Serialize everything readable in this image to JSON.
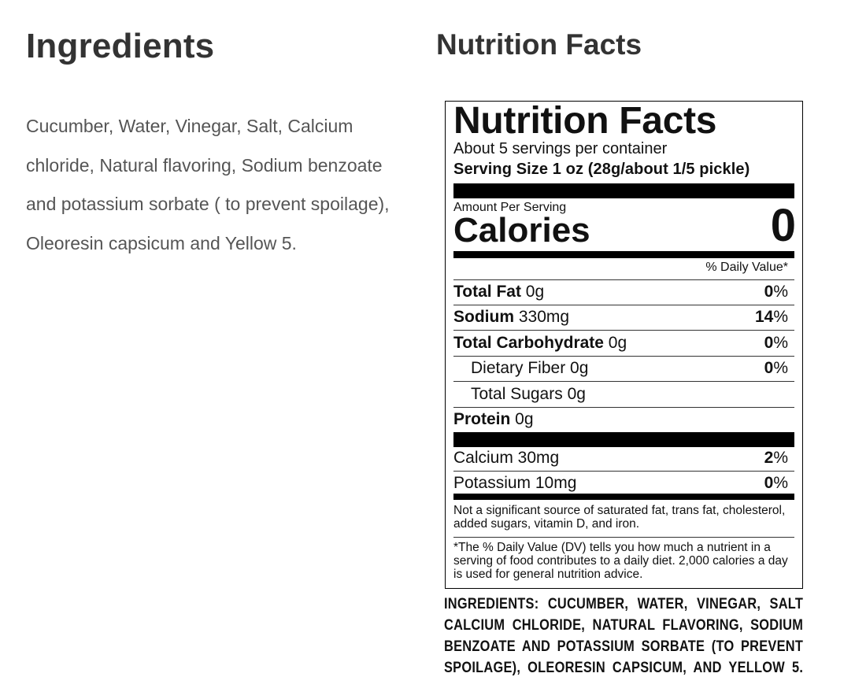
{
  "ingredients_section": {
    "title": "Ingredients",
    "text": "Cucumber, Water, Vinegar, Salt, Calcium chloride, Natural flavoring, Sodium benzoate and potassium sorbate ( to prevent spoilage), Oleoresin capsicum and Yellow 5."
  },
  "nutrition_section": {
    "title": "Nutrition Facts"
  },
  "label": {
    "title": "Nutrition Facts",
    "servings": "About 5 servings per container",
    "serving_size": "Serving Size 1 oz (28g/about 1/5 pickle)",
    "amount_per_serving": "Amount Per Serving",
    "calories_label": "Calories",
    "calories_value": "0",
    "dv_header": "% Daily Value*",
    "rows": [
      {
        "name": "Total Fat",
        "amount": "0g",
        "dv": "0",
        "bold": true
      },
      {
        "name": "Sodium",
        "amount": "330mg",
        "dv": "14",
        "bold": true
      },
      {
        "name": "Total Carbohydrate",
        "amount": "0g",
        "dv": "0",
        "bold": true
      },
      {
        "name": "Dietary Fiber",
        "amount": "0g",
        "dv": "0",
        "bold": false
      },
      {
        "name": "Total Sugars",
        "amount": "0g",
        "dv": "",
        "bold": false
      },
      {
        "name": "Protein",
        "amount": "0g",
        "dv": "",
        "bold": true
      }
    ],
    "minerals": [
      {
        "name": "Calcium",
        "amount": "30mg",
        "dv": "2"
      },
      {
        "name": "Potassium",
        "amount": "10mg",
        "dv": "0"
      }
    ],
    "percent_sign": "%",
    "not_significant": "Not a significant source of saturated fat, trans fat, cholesterol, added sugars, vitamin D, and iron.",
    "dv_footnote": "*The % Daily Value (DV) tells you how much a nutrient in a serving of food contributes to a daily diet. 2,000 calories a day is used for general nutrition advice."
  },
  "package_ingredients": [
    "INGREDIENTS: CUCUMBER, WATER, VINEGAR, SALT",
    "CALCIUM CHLORIDE, NATURAL FLAVORING, SODIUM",
    "BENZOATE AND POTASSIUM SORBATE (TO PREVENT",
    "SPOILAGE), OLEORESIN CAPSICUM, AND YELLOW 5."
  ]
}
